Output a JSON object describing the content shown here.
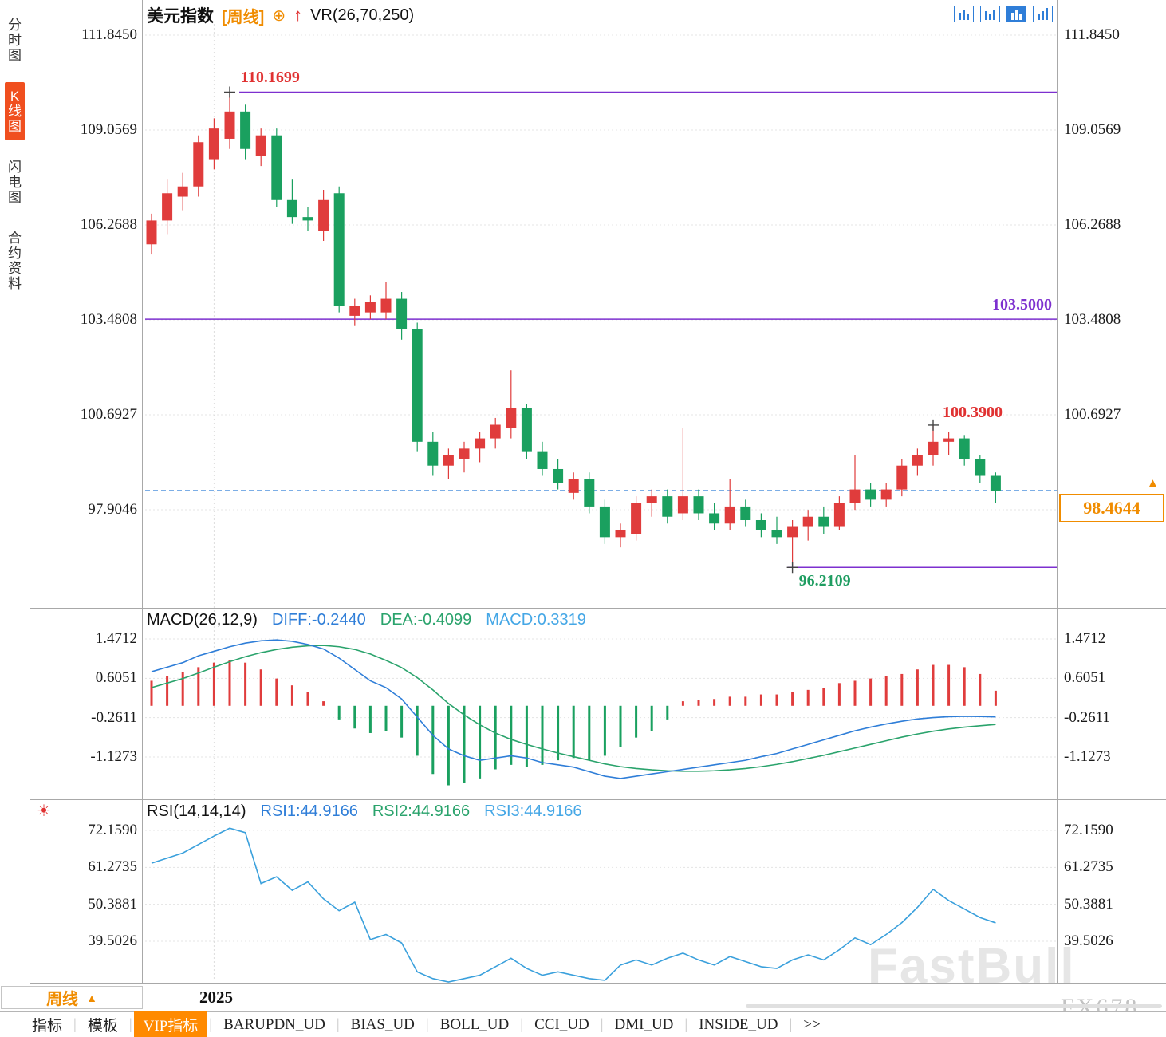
{
  "header": {
    "symbol": "美元指数",
    "period_tag": "[周线]",
    "add_icon": "⊕",
    "trend_icon": "↑",
    "overlay_indicator": "VR(26,70,250)"
  },
  "toolbar_icons": [
    {
      "name": "single-view-icon",
      "active": false
    },
    {
      "name": "dual-view-icon",
      "active": false
    },
    {
      "name": "indicator-view-icon",
      "active": true
    },
    {
      "name": "multi-view-icon",
      "active": false
    }
  ],
  "sidebar": {
    "tabs": [
      {
        "label": "分时图",
        "active": false
      },
      {
        "label": "K线图",
        "active": true
      },
      {
        "label": "闪电图",
        "active": false
      },
      {
        "label": "合约资料",
        "active": false
      }
    ]
  },
  "macd_header": {
    "title": "MACD(26,12,9)",
    "diff": "DIFF:-0.2440",
    "dea": "DEA:-0.4099",
    "macd": "MACD:0.3319"
  },
  "rsi_header": {
    "title": "RSI(14,14,14)",
    "rsi1": "RSI1:44.9166",
    "rsi2": "RSI2:44.9166",
    "rsi3": "RSI3:44.9166"
  },
  "misc_icons": {
    "sun": "☀"
  },
  "price_marker": {
    "value": "98.4644",
    "arrow": "▲"
  },
  "footer": {
    "period": "周线",
    "arrow": "▲",
    "year": "2025"
  },
  "bottom_tabs": [
    {
      "label": "指标",
      "active": false
    },
    {
      "label": "模板",
      "active": false
    },
    {
      "label": "VIP指标",
      "active": true
    },
    {
      "label": "BARUPDN_UD",
      "active": false
    },
    {
      "label": "BIAS_UD",
      "active": false
    },
    {
      "label": "BOLL_UD",
      "active": false
    },
    {
      "label": "CCI_UD",
      "active": false
    },
    {
      "label": "DMI_UD",
      "active": false
    },
    {
      "label": "INSIDE_UD",
      "active": false
    },
    {
      "label": ">>",
      "active": false
    }
  ],
  "watermark": {
    "main": "FastBull",
    "sub": "FX678"
  },
  "colors": {
    "up": "#e03c3c",
    "down": "#1aa05f",
    "accent_orange": "#f08c00",
    "purple_line": "#7d30cf",
    "dashed_line": "#2f7ed8",
    "diff_line": "#2f7ed8",
    "dea_line": "#2aa36c",
    "rsi_line": "#3aa0dc",
    "red_label": "#e03131",
    "green_label": "#1f9d61",
    "purple_label": "#7d30cf",
    "active_side_tab_bg": "#f04f1f",
    "vip_tab_bg": "#ff8a00"
  },
  "chart_data": {
    "type": "candlestick",
    "title": "美元指数 周线 (US Dollar Index, weekly)",
    "main": {
      "ylim": [
        95.8,
        112.3
      ],
      "grid": "dotted",
      "ticks": [
        "111.8450",
        "109.0569",
        "106.2688",
        "103.4808",
        "100.6927",
        "97.9046"
      ],
      "candles": [
        [
          105.7,
          106.6,
          105.4,
          106.4
        ],
        [
          106.4,
          107.6,
          106.0,
          107.2
        ],
        [
          107.1,
          107.8,
          106.7,
          107.4
        ],
        [
          107.4,
          108.9,
          107.1,
          108.7
        ],
        [
          108.2,
          109.4,
          107.9,
          109.1
        ],
        [
          108.8,
          110.1699,
          108.5,
          109.6
        ],
        [
          109.6,
          109.8,
          108.2,
          108.5
        ],
        [
          108.3,
          109.1,
          108.0,
          108.9
        ],
        [
          108.9,
          109.1,
          106.8,
          107.0
        ],
        [
          107.0,
          107.6,
          106.3,
          106.5
        ],
        [
          106.5,
          106.8,
          106.1,
          106.4
        ],
        [
          106.1,
          107.3,
          105.8,
          107.0
        ],
        [
          107.2,
          107.4,
          103.7,
          103.9
        ],
        [
          103.6,
          104.1,
          103.3,
          103.9
        ],
        [
          103.7,
          104.2,
          103.5,
          104.0
        ],
        [
          103.7,
          104.6,
          103.5,
          104.1
        ],
        [
          104.1,
          104.3,
          102.9,
          103.2
        ],
        [
          103.2,
          103.4,
          99.6,
          99.9
        ],
        [
          99.9,
          100.2,
          98.9,
          99.2
        ],
        [
          99.2,
          99.7,
          98.8,
          99.5
        ],
        [
          99.4,
          99.9,
          99.0,
          99.7
        ],
        [
          99.7,
          100.2,
          99.3,
          100.0
        ],
        [
          100.0,
          100.6,
          99.7,
          100.4
        ],
        [
          100.3,
          102.0,
          100.0,
          100.9
        ],
        [
          100.9,
          101.0,
          99.4,
          99.6
        ],
        [
          99.6,
          99.9,
          98.9,
          99.1
        ],
        [
          99.1,
          99.4,
          98.5,
          98.7
        ],
        [
          98.4,
          99.0,
          98.2,
          98.8
        ],
        [
          98.8,
          99.0,
          97.8,
          98.0
        ],
        [
          98.0,
          98.2,
          96.9,
          97.1
        ],
        [
          97.1,
          97.5,
          96.8,
          97.3
        ],
        [
          97.2,
          98.3,
          97.0,
          98.1
        ],
        [
          98.1,
          98.5,
          97.7,
          98.3
        ],
        [
          98.3,
          98.5,
          97.5,
          97.7
        ],
        [
          97.8,
          100.3,
          97.6,
          98.3
        ],
        [
          98.3,
          98.5,
          97.6,
          97.8
        ],
        [
          97.8,
          98.1,
          97.3,
          97.5
        ],
        [
          97.5,
          98.8,
          97.3,
          98.0
        ],
        [
          98.0,
          98.2,
          97.4,
          97.6
        ],
        [
          97.6,
          97.8,
          97.1,
          97.3
        ],
        [
          97.3,
          97.7,
          96.9,
          97.1
        ],
        [
          97.1,
          97.6,
          96.2109,
          97.4
        ],
        [
          97.4,
          97.9,
          97.0,
          97.7
        ],
        [
          97.7,
          98.0,
          97.2,
          97.4
        ],
        [
          97.4,
          98.3,
          97.3,
          98.1
        ],
        [
          98.1,
          99.5,
          97.9,
          98.5
        ],
        [
          98.5,
          98.7,
          98.0,
          98.2
        ],
        [
          98.2,
          98.7,
          98.0,
          98.5
        ],
        [
          98.5,
          99.4,
          98.3,
          99.2
        ],
        [
          99.2,
          99.7,
          98.9,
          99.5
        ],
        [
          99.5,
          100.39,
          99.2,
          99.9
        ],
        [
          99.9,
          100.2,
          99.5,
          100.0
        ],
        [
          100.0,
          100.1,
          99.2,
          99.4
        ],
        [
          99.4,
          99.5,
          98.7,
          98.9
        ],
        [
          98.9,
          99.0,
          98.1,
          98.4644
        ]
      ],
      "levels": [
        {
          "price": 110.1699,
          "label": "110.1699",
          "color": "#7d30cf",
          "label_color": "#e03131",
          "start_index": 5,
          "label_pos": "above-start"
        },
        {
          "price": 103.5,
          "label": "103.5000",
          "color": "#7d30cf",
          "label_color": "#7d30cf",
          "start_index": null,
          "label_pos": "above-end"
        },
        {
          "price": 96.2109,
          "label": "96.2109",
          "color": "#7d30cf",
          "label_color": "#1f9d61",
          "start_index": 41,
          "label_pos": "below-start"
        }
      ],
      "current_price": {
        "value": 98.4644,
        "label": "98.4644"
      },
      "markers": [
        {
          "index": 5,
          "price": 110.1699
        },
        {
          "index": 41,
          "price": 96.2109
        },
        {
          "index": 50,
          "price": 100.39,
          "label": "100.3900"
        }
      ]
    },
    "macd": {
      "params": "(26,12,9)",
      "diff_last": -0.244,
      "dea_last": -0.4099,
      "macd_last": 0.3319,
      "ticks": [
        "1.4712",
        "0.6051",
        "-0.2611",
        "-1.1273"
      ],
      "hist": [
        0.55,
        0.65,
        0.75,
        0.85,
        0.95,
        1.0,
        0.95,
        0.8,
        0.6,
        0.45,
        0.3,
        0.1,
        -0.3,
        -0.5,
        -0.6,
        -0.55,
        -0.7,
        -1.1,
        -1.5,
        -1.75,
        -1.7,
        -1.6,
        -1.4,
        -1.3,
        -1.35,
        -1.3,
        -1.2,
        -1.15,
        -1.2,
        -1.1,
        -0.9,
        -0.7,
        -0.55,
        -0.3,
        0.1,
        0.12,
        0.15,
        0.2,
        0.2,
        0.25,
        0.25,
        0.3,
        0.35,
        0.4,
        0.5,
        0.55,
        0.6,
        0.65,
        0.7,
        0.8,
        0.9,
        0.9,
        0.85,
        0.7,
        0.332
      ],
      "diff": [
        0.75,
        0.85,
        0.95,
        1.1,
        1.2,
        1.3,
        1.38,
        1.43,
        1.45,
        1.42,
        1.35,
        1.25,
        1.05,
        0.8,
        0.55,
        0.4,
        0.15,
        -0.25,
        -0.65,
        -0.95,
        -1.1,
        -1.2,
        -1.15,
        -1.1,
        -1.15,
        -1.25,
        -1.3,
        -1.35,
        -1.45,
        -1.55,
        -1.6,
        -1.55,
        -1.5,
        -1.45,
        -1.4,
        -1.35,
        -1.3,
        -1.25,
        -1.2,
        -1.12,
        -1.05,
        -0.95,
        -0.85,
        -0.75,
        -0.65,
        -0.55,
        -0.47,
        -0.4,
        -0.34,
        -0.29,
        -0.26,
        -0.24,
        -0.23,
        -0.235,
        -0.244
      ],
      "dea": [
        0.4,
        0.5,
        0.6,
        0.72,
        0.85,
        0.97,
        1.08,
        1.17,
        1.24,
        1.29,
        1.32,
        1.33,
        1.3,
        1.24,
        1.14,
        1.0,
        0.84,
        0.62,
        0.35,
        0.05,
        -0.2,
        -0.42,
        -0.6,
        -0.74,
        -0.85,
        -0.95,
        -1.04,
        -1.12,
        -1.2,
        -1.28,
        -1.34,
        -1.38,
        -1.41,
        -1.43,
        -1.44,
        -1.44,
        -1.43,
        -1.41,
        -1.38,
        -1.34,
        -1.29,
        -1.23,
        -1.16,
        -1.09,
        -1.01,
        -0.93,
        -0.85,
        -0.77,
        -0.69,
        -0.62,
        -0.56,
        -0.51,
        -0.47,
        -0.44,
        -0.41
      ]
    },
    "rsi": {
      "params": "(14,14,14)",
      "last": 44.9166,
      "ticks": [
        "72.1590",
        "61.2735",
        "50.3881",
        "39.5026"
      ],
      "values": [
        62.5,
        64,
        65.5,
        68,
        70.5,
        72.8,
        71.5,
        56.5,
        58.5,
        54.5,
        57,
        52,
        48.5,
        51,
        40,
        41.5,
        39,
        30.5,
        28.5,
        27.5,
        28.5,
        29.5,
        32,
        34.5,
        31.5,
        29.5,
        30.5,
        29.5,
        28.5,
        28,
        32.5,
        34,
        32.5,
        34.5,
        36,
        34,
        32.5,
        35,
        33.5,
        32,
        31.5,
        34,
        35.5,
        34,
        37,
        40.5,
        38.5,
        41.5,
        45,
        49.5,
        54.8,
        51.5,
        49,
        46.5,
        44.92
      ]
    },
    "x_axis": {
      "year_label": "2025",
      "year_index": 4
    }
  }
}
